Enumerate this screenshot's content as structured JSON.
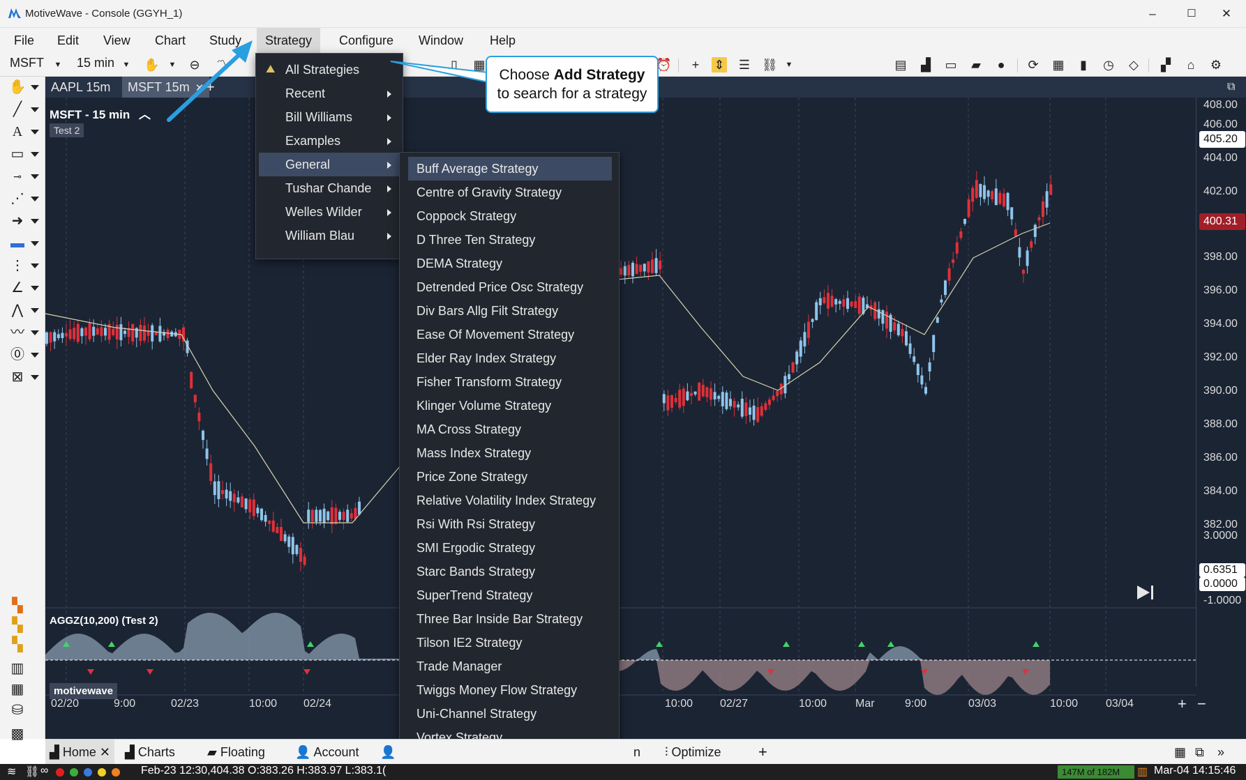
{
  "window": {
    "title": "MotiveWave - Console (GGYH_1)",
    "controls": [
      "–",
      "☐",
      "✕"
    ]
  },
  "menubar": [
    "File",
    "Edit",
    "View",
    "Chart",
    "Study",
    "Strategy",
    "Configure",
    "Window",
    "Help"
  ],
  "toolbar": {
    "symbol": "MSFT",
    "interval": "15 min"
  },
  "tabs": [
    {
      "label": "AAPL 15m",
      "active": false
    },
    {
      "label": "MSFT 15m",
      "active": true
    }
  ],
  "chart": {
    "title": "MSFT - 15 min",
    "study_badge": "Test 2",
    "osc_title": "AGGZ(10,200) (Test 2)",
    "watermark": "motivewave",
    "price_labels": [
      "406.00",
      "404.00",
      "402.00",
      "398.00",
      "396.00",
      "394.00",
      "392.00",
      "390.00",
      "388.00",
      "386.00",
      "384.00",
      "382.00"
    ],
    "price_tag_current": "405.20",
    "price_tag_last": "400.31",
    "osc_labels": [
      "0.6351",
      "0.0000",
      "-1.0000"
    ],
    "time_labels": [
      "02/20",
      "9:00",
      "02/23",
      "10:00",
      "02/24",
      "10:00",
      "02/27",
      "10:00",
      "Mar",
      "9:00",
      "03/03",
      "10:00",
      "03/04"
    ]
  },
  "strategy_menu": {
    "items": [
      {
        "label": "All Strategies",
        "has_submenu": false
      },
      {
        "label": "Recent",
        "has_submenu": true
      },
      {
        "label": "Bill Williams",
        "has_submenu": true
      },
      {
        "label": "Examples",
        "has_submenu": true
      },
      {
        "label": "General",
        "has_submenu": true,
        "highlighted": true
      },
      {
        "label": "Tushar Chande",
        "has_submenu": true
      },
      {
        "label": "Welles Wilder",
        "has_submenu": true
      },
      {
        "label": "William Blau",
        "has_submenu": true
      }
    ]
  },
  "general_submenu": [
    "Buff Average Strategy",
    "Centre of Gravity Strategy",
    "Coppock Strategy",
    "D Three Ten Strategy",
    "DEMA Strategy",
    "Detrended Price Osc Strategy",
    "Div Bars Allg Filt Strategy",
    "Ease Of Movement Strategy",
    "Elder Ray Index Strategy",
    "Fisher Transform Strategy",
    "Klinger Volume Strategy",
    "MA Cross Strategy",
    "Mass Index Strategy",
    "Price Zone Strategy",
    "Relative Volatility Index Strategy",
    "Rsi With Rsi Strategy",
    "SMI Ergodic Strategy",
    "Starc Bands Strategy",
    "SuperTrend Strategy",
    "Three Bar Inside Bar Strategy",
    "Tilson IE2 Strategy",
    "Trade Manager",
    "Twiggs Money Flow Strategy",
    "Uni-Channel Strategy",
    "Vortex Strategy"
  ],
  "callout": {
    "prefix": "Choose ",
    "bold": "Add Strategy",
    "line2": "to search for a strategy"
  },
  "dock": {
    "home": "Home",
    "charts": "Charts",
    "floating": "Floating",
    "account": "Account",
    "partial": "n",
    "optimize": "Optimize"
  },
  "status": {
    "quote": "Feb-23 12:30,404.38 O:383.26 H:383.97 L:383.1(",
    "memory": "147M of 182M",
    "datetime": "Mar-04 14:15:46"
  },
  "colors": {
    "chart_bg": "#1b2433",
    "up_candle": "#8fc4ea",
    "down_candle": "#e0303a",
    "ma_line": "#d8d4b0",
    "menu_bg": "#22272f",
    "menu_highlight": "#3d4a63",
    "callout_border": "#2a9fe0"
  }
}
